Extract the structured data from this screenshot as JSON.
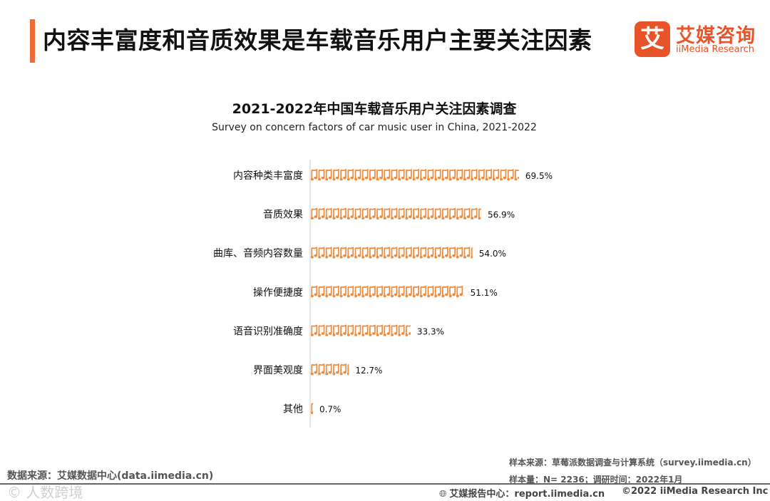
{
  "header": {
    "title": "内容丰富度和音质效果是车载音乐用户主要关注因素",
    "logo_mark": "艾",
    "logo_cn": "艾媒咨询",
    "logo_en": "iiMedia Research"
  },
  "colors": {
    "accent": "#ef6a35",
    "bar_icon": "#f08a3c",
    "axis": "#cccccc"
  },
  "icon": "music-note-icon",
  "chart_data": {
    "type": "bar",
    "orientation": "horizontal",
    "title": "2021-2022年中国车载音乐用户关注因素调查",
    "subtitle": "Survey on concern factors of car music user in China, 2021-2022",
    "unit": "%",
    "categories": [
      "内容种类丰富度",
      "音质效果",
      "曲库、音频内容数量",
      "操作便捷度",
      "语音识别准确度",
      "界面美观度",
      "其他"
    ],
    "values": [
      69.5,
      56.9,
      54.0,
      51.1,
      33.3,
      12.7,
      0.7
    ],
    "value_labels": [
      "69.5%",
      "56.9%",
      "54.0%",
      "51.1%",
      "33.3%",
      "12.7%",
      "0.7%"
    ],
    "xlim": [
      0,
      100
    ],
    "grid": false,
    "legend": "none"
  },
  "footer": {
    "data_source": "数据来源：艾媒数据中心(data.iimedia.cn)",
    "watermark": "©  人数跨境",
    "sample_source": "样本来源：草莓派数据调查与计算系统（survey.iimedia.cn）",
    "sample_size": "样本量：N= 2236；调研时间：2022年1月",
    "report_center": "艾媒报告中心：report.iimedia.cn",
    "copyright": "©2022  iiMedia Research  Inc"
  }
}
